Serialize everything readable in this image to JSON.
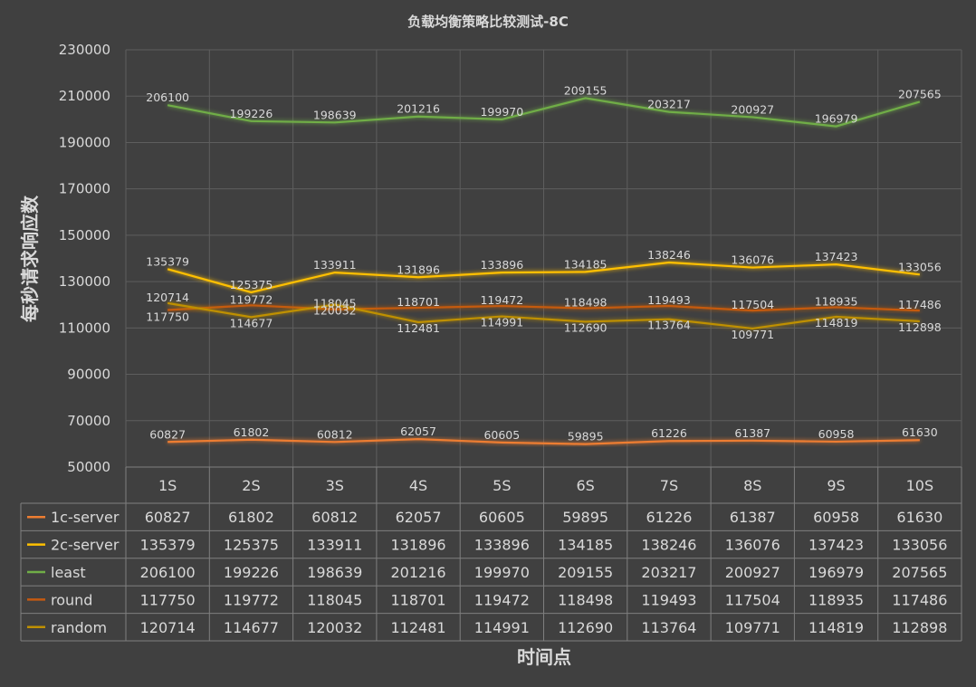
{
  "chart_data": {
    "type": "line",
    "title": "负载均衡策略比较测试-8C",
    "xlabel": "时间点",
    "ylabel": "每秒请求响应数",
    "categories": [
      "1S",
      "2S",
      "3S",
      "4S",
      "5S",
      "6S",
      "7S",
      "8S",
      "9S",
      "10S"
    ],
    "ylim": [
      50000,
      230000
    ],
    "yticks": [
      50000,
      70000,
      90000,
      110000,
      130000,
      150000,
      170000,
      190000,
      210000,
      230000
    ],
    "grid": true,
    "legend": "data-table",
    "series": [
      {
        "name": "1c-server",
        "color": "#ed7d31",
        "values": [
          60827,
          61802,
          60812,
          62057,
          60605,
          59895,
          61226,
          61387,
          60958,
          61630
        ]
      },
      {
        "name": "2c-server",
        "color": "#ffc000",
        "values": [
          135379,
          125375,
          133911,
          131896,
          133896,
          134185,
          138246,
          136076,
          137423,
          133056
        ]
      },
      {
        "name": "least",
        "color": "#70ad47",
        "values": [
          206100,
          199226,
          198639,
          201216,
          199970,
          209155,
          203217,
          200927,
          196979,
          207565
        ]
      },
      {
        "name": "round",
        "color": "#c55a11",
        "values": [
          117750,
          119772,
          118045,
          118701,
          119472,
          118498,
          119493,
          117504,
          118935,
          117486
        ]
      },
      {
        "name": "random",
        "color": "#bf9000",
        "values": [
          120714,
          114677,
          120032,
          112481,
          114991,
          112690,
          113764,
          109771,
          114819,
          112898
        ]
      }
    ]
  }
}
